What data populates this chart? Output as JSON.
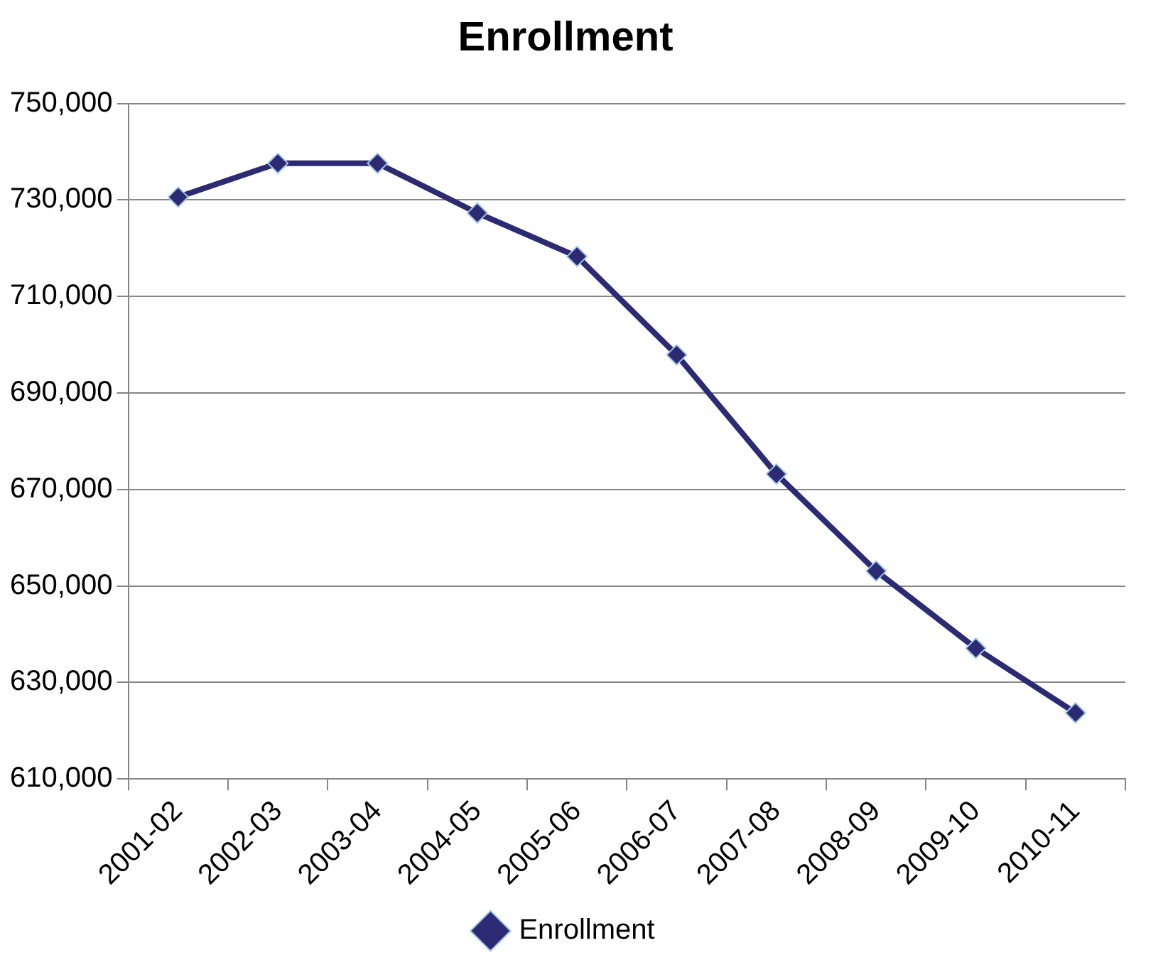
{
  "chart_data": {
    "type": "line",
    "title": "Enrollment",
    "categories": [
      "2001-02",
      "2002-03",
      "2003-04",
      "2004-05",
      "2005-06",
      "2006-07",
      "2007-08",
      "2008-09",
      "2009-10",
      "2010-11"
    ],
    "series": [
      {
        "name": "Enrollment",
        "color": "#2b2a73",
        "values": [
          730600,
          737600,
          737600,
          727300,
          718300,
          697900,
          673200,
          653100,
          637100,
          623700
        ]
      }
    ],
    "ylim": [
      610000,
      750000
    ],
    "yticks": [
      {
        "value": 610000,
        "label": "610,000"
      },
      {
        "value": 630000,
        "label": "630,000"
      },
      {
        "value": 650000,
        "label": "650,000"
      },
      {
        "value": 670000,
        "label": "670,000"
      },
      {
        "value": 690000,
        "label": "690,000"
      },
      {
        "value": 710000,
        "label": "710,000"
      },
      {
        "value": 730000,
        "label": "730,000"
      },
      {
        "value": 750000,
        "label": "750,000"
      }
    ],
    "grid": "y",
    "legend": "bottom",
    "marker": "diamond",
    "line_style": "solid"
  }
}
